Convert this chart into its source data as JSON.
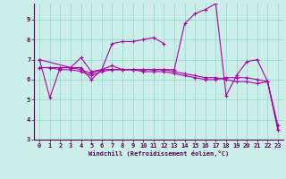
{
  "xlabel": "Windchill (Refroidissement éolien,°C)",
  "background_color": "#cceee8",
  "line_color": "#aa00aa",
  "grid_color": "#99ddcc",
  "xlim": [
    -0.5,
    23.5
  ],
  "ylim": [
    3,
    9.8
  ],
  "yticks": [
    3,
    4,
    5,
    6,
    7,
    8,
    9
  ],
  "xticks": [
    0,
    1,
    2,
    3,
    4,
    5,
    6,
    7,
    8,
    9,
    10,
    11,
    12,
    13,
    14,
    15,
    16,
    17,
    18,
    19,
    20,
    21,
    22,
    23
  ],
  "series": [
    {
      "x": [
        0,
        1,
        2,
        3,
        4,
        5,
        6,
        7,
        8,
        9,
        10,
        11,
        12
      ],
      "y": [
        7.0,
        5.1,
        6.6,
        6.6,
        7.1,
        6.4,
        6.5,
        7.8,
        7.9,
        7.9,
        8.0,
        8.1,
        7.8
      ]
    },
    {
      "x": [
        0,
        3,
        4,
        5,
        6,
        7,
        8,
        9,
        10,
        11,
        12,
        13,
        14,
        15,
        16,
        17,
        18,
        19,
        20,
        21,
        22,
        23
      ],
      "y": [
        7.0,
        6.6,
        6.6,
        6.0,
        6.5,
        6.7,
        6.5,
        6.5,
        6.5,
        6.5,
        6.5,
        6.5,
        8.8,
        9.3,
        9.5,
        9.8,
        5.2,
        6.2,
        6.9,
        7.0,
        5.9,
        3.5
      ]
    },
    {
      "x": [
        0,
        1,
        2,
        3,
        4,
        5,
        6,
        7,
        8,
        9,
        10,
        11,
        12,
        13,
        14,
        15,
        16,
        17,
        18,
        19,
        20,
        21,
        22,
        23
      ],
      "y": [
        6.6,
        6.6,
        6.6,
        6.6,
        6.5,
        6.3,
        6.5,
        6.5,
        6.5,
        6.5,
        6.5,
        6.5,
        6.5,
        6.4,
        6.3,
        6.2,
        6.1,
        6.1,
        6.0,
        5.9,
        5.9,
        5.8,
        5.9,
        3.7
      ]
    },
    {
      "x": [
        0,
        1,
        2,
        3,
        4,
        5,
        6,
        7,
        8,
        9,
        10,
        11,
        12,
        13,
        14,
        15,
        16,
        17,
        18,
        19,
        20,
        21,
        22,
        23
      ],
      "y": [
        6.6,
        6.6,
        6.5,
        6.5,
        6.4,
        6.2,
        6.4,
        6.5,
        6.5,
        6.5,
        6.4,
        6.4,
        6.4,
        6.3,
        6.2,
        6.1,
        6.0,
        6.0,
        6.1,
        6.1,
        6.1,
        6.0,
        5.9,
        3.5
      ]
    }
  ]
}
